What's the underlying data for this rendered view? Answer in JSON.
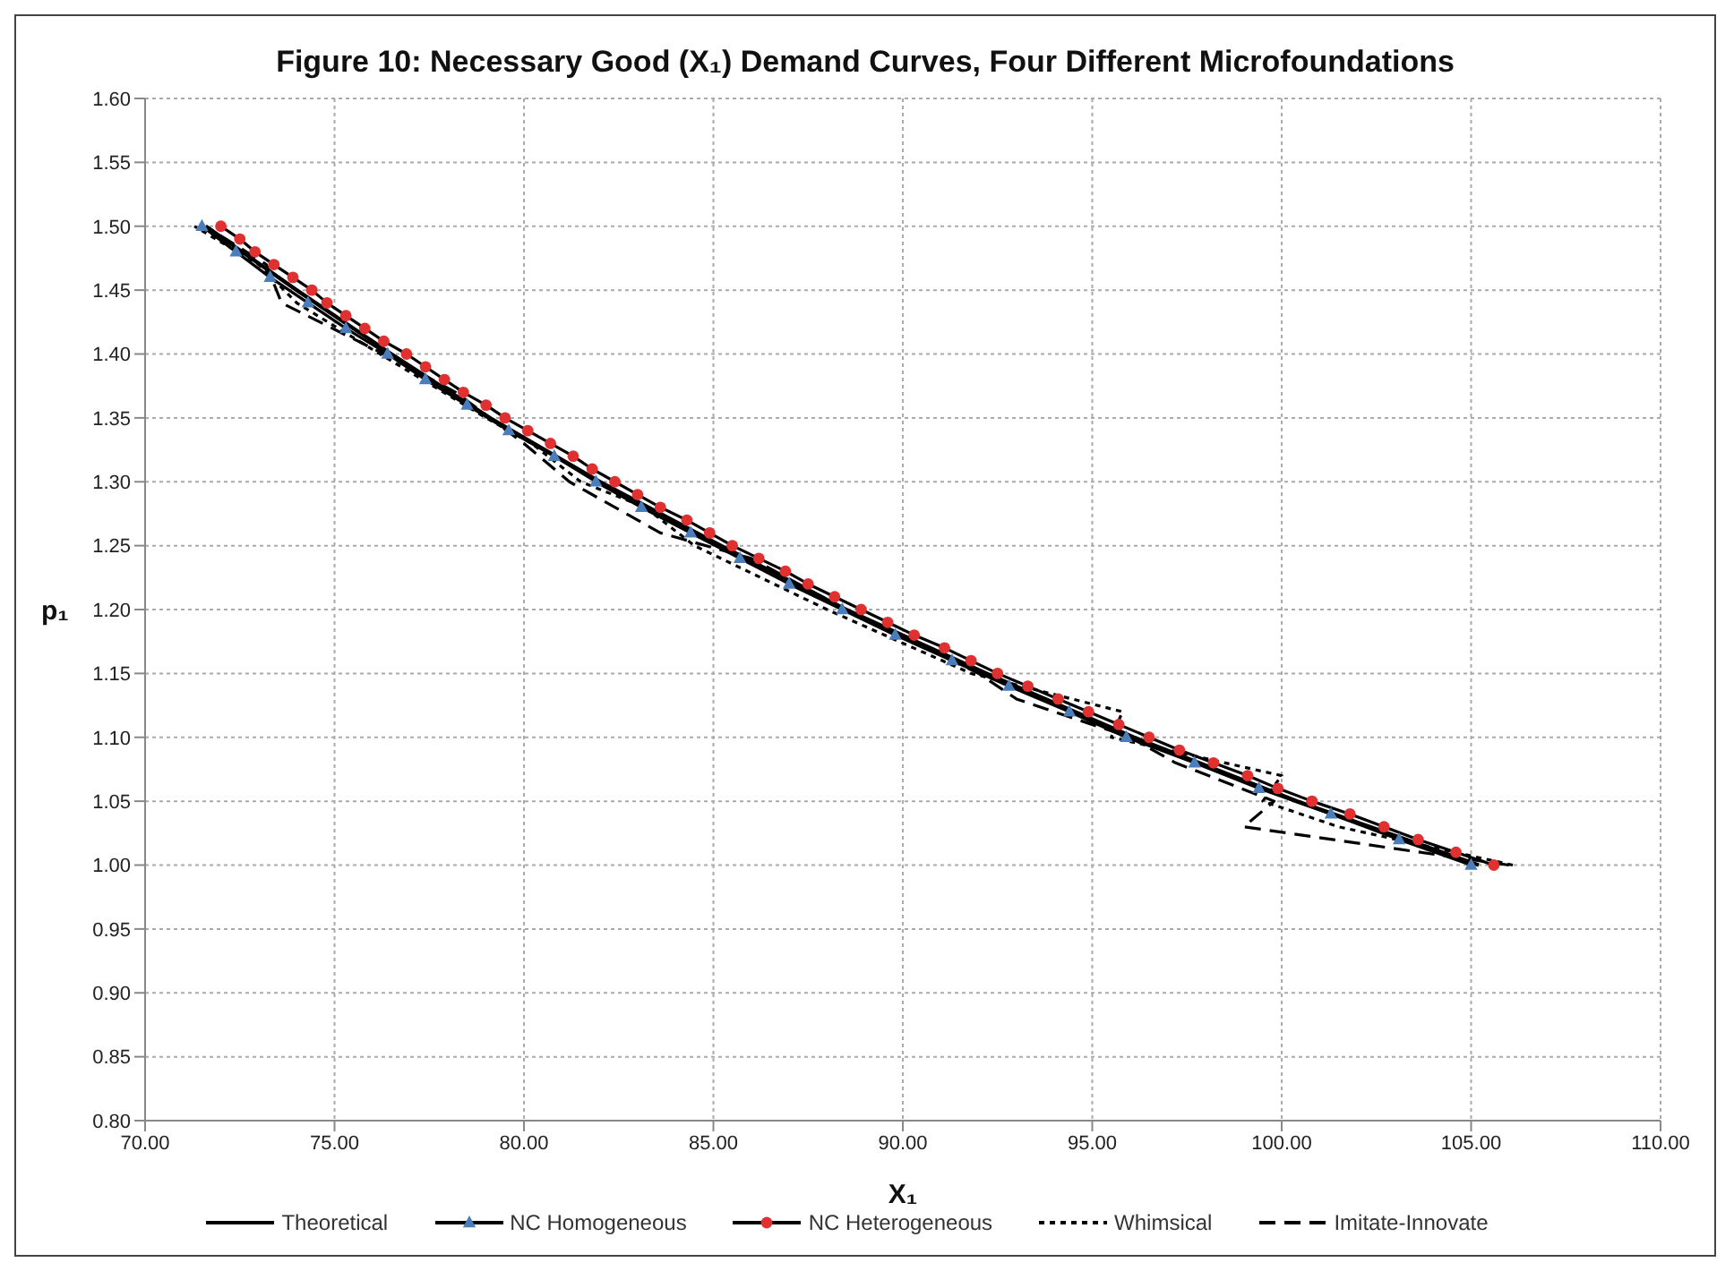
{
  "chart_data": {
    "type": "line",
    "title": "Figure 10: Necessary Good (X₁) Demand Curves, Four Different Microfoundations",
    "xlabel": "X₁",
    "ylabel": "p₁",
    "xlim": [
      70,
      110
    ],
    "xticks": [
      {
        "value": 70,
        "label": "70.00"
      },
      {
        "value": 75,
        "label": "75.00"
      },
      {
        "value": 80,
        "label": "80.00"
      },
      {
        "value": 85,
        "label": "85.00"
      },
      {
        "value": 90,
        "label": "90.00"
      },
      {
        "value": 95,
        "label": "95.00"
      },
      {
        "value": 100,
        "label": "100.00"
      },
      {
        "value": 105,
        "label": "105.00"
      },
      {
        "value": 110,
        "label": "110.00"
      }
    ],
    "ylim": [
      0.8,
      1.6
    ],
    "yticks": [
      {
        "value": 0.8,
        "label": "0.80"
      },
      {
        "value": 0.85,
        "label": "0.85"
      },
      {
        "value": 0.9,
        "label": "0.90"
      },
      {
        "value": 0.95,
        "label": "0.95"
      },
      {
        "value": 1.0,
        "label": "1.00"
      },
      {
        "value": 1.05,
        "label": "1.05"
      },
      {
        "value": 1.1,
        "label": "1.10"
      },
      {
        "value": 1.15,
        "label": "1.15"
      },
      {
        "value": 1.2,
        "label": "1.20"
      },
      {
        "value": 1.25,
        "label": "1.25"
      },
      {
        "value": 1.3,
        "label": "1.30"
      },
      {
        "value": 1.35,
        "label": "1.35"
      },
      {
        "value": 1.4,
        "label": "1.40"
      },
      {
        "value": 1.45,
        "label": "1.45"
      },
      {
        "value": 1.5,
        "label": "1.50"
      },
      {
        "value": 1.55,
        "label": "1.55"
      },
      {
        "value": 1.6,
        "label": "1.60"
      }
    ],
    "grid": true,
    "legend": "bottom",
    "series": [
      {
        "name": "Theoretical",
        "color": "#000000",
        "marker": "none",
        "line_style": "solid",
        "x": [
          105.2,
          100.4,
          96.1,
          92.2,
          88.5,
          85.2,
          82.0,
          79.1,
          76.5,
          74.0,
          71.6
        ],
        "values": [
          1.0,
          1.05,
          1.1,
          1.15,
          1.2,
          1.25,
          1.3,
          1.35,
          1.4,
          1.45,
          1.5
        ]
      },
      {
        "name": "NC Homogeneous",
        "color": "#4a7ebb",
        "marker": "triangle",
        "line_style": "solid",
        "x": [
          105.0,
          103.1,
          101.3,
          99.4,
          97.7,
          95.9,
          94.4,
          92.8,
          91.3,
          89.8,
          88.4,
          87.0,
          85.7,
          84.4,
          83.1,
          81.9,
          80.8,
          79.6,
          78.5,
          77.4,
          76.4,
          75.3,
          74.3,
          73.3,
          72.4,
          71.5
        ],
        "values": [
          1.0,
          1.02,
          1.04,
          1.06,
          1.08,
          1.1,
          1.12,
          1.14,
          1.16,
          1.18,
          1.2,
          1.22,
          1.24,
          1.26,
          1.28,
          1.3,
          1.32,
          1.34,
          1.36,
          1.38,
          1.4,
          1.42,
          1.44,
          1.46,
          1.48,
          1.5
        ]
      },
      {
        "name": "NC Heterogeneous",
        "color": "#e03030",
        "marker": "circle",
        "line_style": "solid",
        "x": [
          105.6,
          104.6,
          103.6,
          102.7,
          101.8,
          100.8,
          99.9,
          99.1,
          98.2,
          97.3,
          96.5,
          95.7,
          94.9,
          94.1,
          93.3,
          92.5,
          91.8,
          91.1,
          90.3,
          89.6,
          88.9,
          88.2,
          87.5,
          86.9,
          86.2,
          85.5,
          84.9,
          84.3,
          83.6,
          83.0,
          82.4,
          81.8,
          81.3,
          80.7,
          80.1,
          79.5,
          79.0,
          78.4,
          77.9,
          77.4,
          76.9,
          76.3,
          75.8,
          75.3,
          74.8,
          74.4,
          73.9,
          73.4,
          72.9,
          72.5,
          72.0
        ],
        "values": [
          1.0,
          1.01,
          1.02,
          1.03,
          1.04,
          1.05,
          1.06,
          1.07,
          1.08,
          1.09,
          1.1,
          1.11,
          1.12,
          1.13,
          1.14,
          1.15,
          1.16,
          1.17,
          1.18,
          1.19,
          1.2,
          1.21,
          1.22,
          1.23,
          1.24,
          1.25,
          1.26,
          1.27,
          1.28,
          1.29,
          1.3,
          1.31,
          1.32,
          1.33,
          1.34,
          1.35,
          1.36,
          1.37,
          1.38,
          1.39,
          1.4,
          1.41,
          1.42,
          1.43,
          1.44,
          1.45,
          1.46,
          1.47,
          1.48,
          1.49,
          1.5
        ]
      },
      {
        "name": "Whimsical",
        "color": "#000000",
        "marker": "none",
        "line_style": "dotted",
        "x": [
          106.1,
          101.5,
          99.5,
          100.0,
          95.5,
          95.8,
          91.8,
          88.0,
          84.5,
          83.2,
          81.5,
          80.2,
          79.0,
          76.2,
          74.0,
          73.0,
          71.3
        ],
        "values": [
          1.0,
          1.03,
          1.05,
          1.07,
          1.1,
          1.12,
          1.15,
          1.2,
          1.25,
          1.28,
          1.3,
          1.33,
          1.35,
          1.4,
          1.44,
          1.47,
          1.5
        ]
      },
      {
        "name": "Imitate-Innovate",
        "color": "#000000",
        "marker": "none",
        "line_style": "dashed",
        "x": [
          106.0,
          99.0,
          99.8,
          97.2,
          96.0,
          93.0,
          92.0,
          88.5,
          86.0,
          83.6,
          81.2,
          80.0,
          78.2,
          76.3,
          73.6,
          73.2,
          71.6
        ],
        "values": [
          1.0,
          1.03,
          1.05,
          1.08,
          1.1,
          1.13,
          1.15,
          1.2,
          1.24,
          1.26,
          1.3,
          1.33,
          1.37,
          1.4,
          1.44,
          1.47,
          1.5
        ]
      }
    ]
  }
}
